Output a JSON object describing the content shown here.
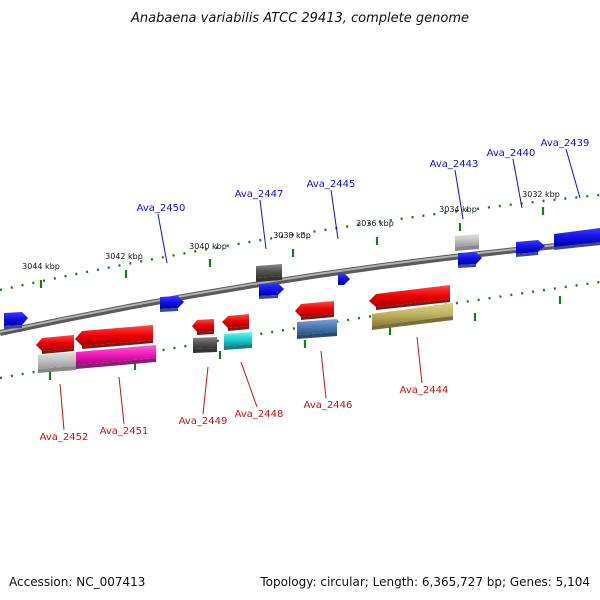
{
  "title": "Anabaena variabilis ATCC 29413, complete genome",
  "footer": {
    "accession": "Accession: NC_007413",
    "summary": "Topology: circular; Length: 6,365,727 bp; Genes: 5,104"
  },
  "ticks": [
    "3044 kbp",
    "3042 kbp",
    "3040 kbp",
    "3038 kbp",
    "3036 kbp",
    "3034 kbp",
    "3032 kbp"
  ],
  "genes_forward": [
    "Ava_2450",
    "Ava_2447",
    "Ava_2445",
    "Ava_2443",
    "Ava_2440",
    "Ava_2439"
  ],
  "genes_reverse": [
    "Ava_2452",
    "Ava_2451",
    "Ava_2449",
    "Ava_2448",
    "Ava_2446",
    "Ava_2444"
  ],
  "colors": {
    "forward_gene": "#1414e0",
    "reverse_gene": "#e01414",
    "backbone": "#808080",
    "tick": "#1a7a1a"
  }
}
